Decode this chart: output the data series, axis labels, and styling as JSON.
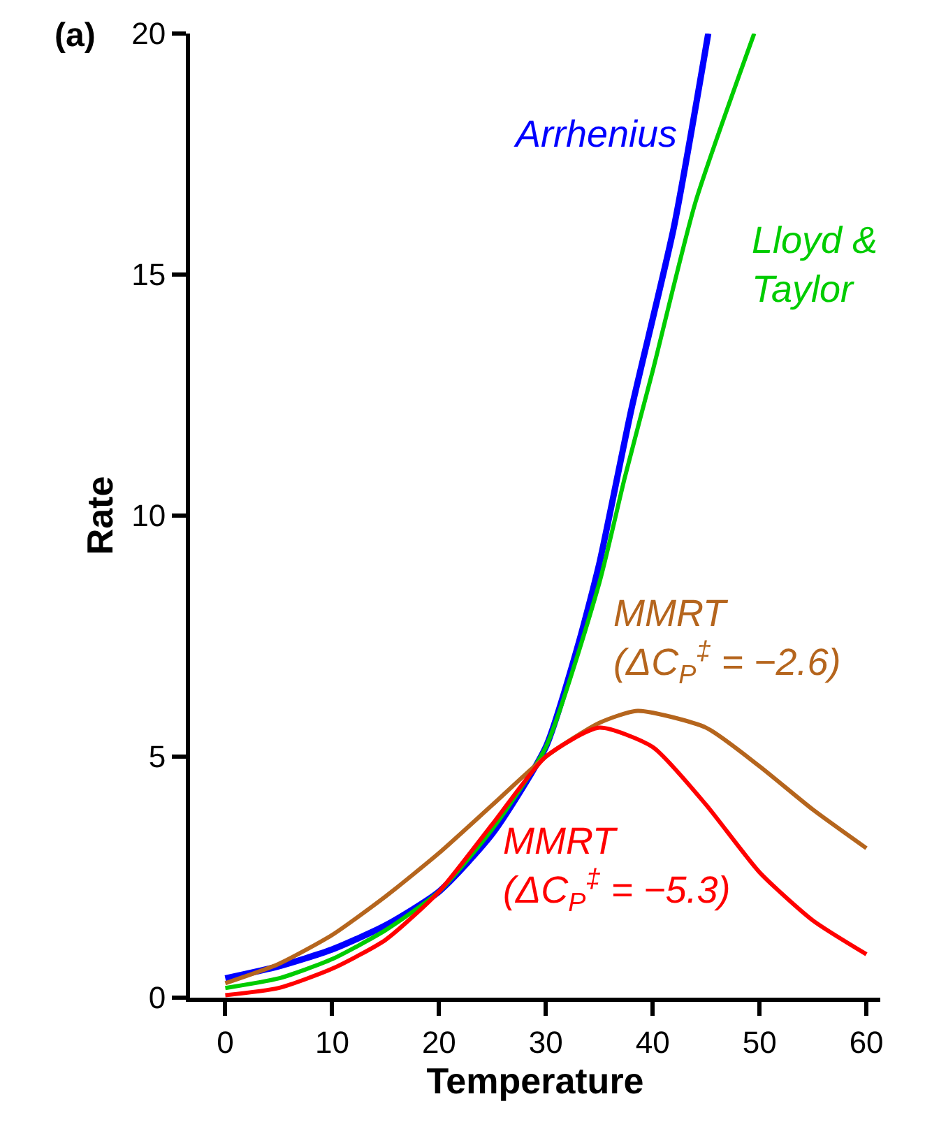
{
  "chart_data": {
    "type": "line",
    "xlabel": "Temperature",
    "ylabel": "Rate",
    "xlim": [
      -3.3,
      61.3
    ],
    "ylim": [
      0,
      20
    ],
    "xticks": [
      0,
      10,
      20,
      30,
      40,
      50,
      60
    ],
    "yticks": [
      0,
      5,
      10,
      15,
      20
    ],
    "legend": false,
    "marker": "none",
    "line_style": "solid",
    "annotations": [
      "(a)"
    ],
    "series": [
      {
        "name": "Arrhenius",
        "color": "#0000ff",
        "x": [
          0,
          5,
          10,
          15,
          20,
          25,
          30,
          33,
          35,
          38,
          42,
          45.2
        ],
        "values": [
          0.4,
          0.65,
          1.0,
          1.5,
          2.2,
          3.4,
          5.2,
          7.3,
          9.0,
          12.2,
          16.0,
          20
        ]
      },
      {
        "name": "Lloyd &\nTaylor",
        "color": "#00cc00",
        "x": [
          0,
          5,
          10,
          15,
          20,
          25,
          30,
          35,
          37.4,
          40,
          44,
          49.5
        ],
        "values": [
          0.2,
          0.4,
          0.8,
          1.4,
          2.2,
          3.5,
          5.2,
          8.6,
          10.8,
          13.0,
          16.5,
          20
        ]
      },
      {
        "name": "MMRT\n(ΔC$_{P}$$^{‡}$ = −2.6)",
        "color": "#b5651d",
        "x": [
          0,
          5,
          10,
          15,
          20,
          25,
          30,
          35,
          38.6,
          45,
          50,
          55,
          60
        ],
        "values": [
          0.3,
          0.7,
          1.3,
          2.1,
          3.0,
          4.0,
          5.0,
          5.7,
          5.95,
          5.6,
          4.8,
          3.9,
          3.1
        ]
      },
      {
        "name": "MMRT\n(ΔC$_{P}$$^{‡}$ = −5.3)",
        "color": "#ff0000",
        "x": [
          0,
          5,
          10,
          15,
          20,
          25,
          30,
          35,
          40,
          45,
          50,
          55,
          60
        ],
        "values": [
          0.05,
          0.2,
          0.6,
          1.2,
          2.2,
          3.6,
          5.0,
          5.6,
          5.2,
          4.0,
          2.6,
          1.6,
          0.9
        ]
      }
    ]
  }
}
